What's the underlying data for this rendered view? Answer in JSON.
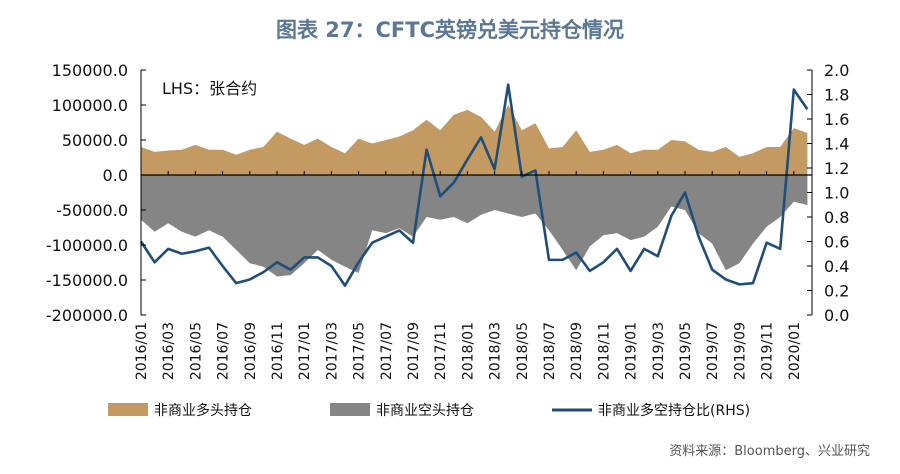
{
  "chart_data": {
    "type": "area+line",
    "title": "图表 27：CFTC英镑兑美元持仓情况",
    "annotation": "LHS：张合约",
    "source": "资料来源：Bloomberg、兴业研究",
    "y_left": {
      "range": [
        -200000,
        150000
      ],
      "ticks": [
        "150000.0",
        "100000.0",
        "50000.0",
        "0.0",
        "-50000.0",
        "-100000.0",
        "-150000.0",
        "-200000.0"
      ]
    },
    "y_right": {
      "range": [
        0,
        2.0
      ],
      "ticks": [
        "2.0",
        "1.8",
        "1.6",
        "1.4",
        "1.2",
        "1.0",
        "0.8",
        "0.6",
        "0.4",
        "0.2",
        "0.0"
      ]
    },
    "x_tick_labels": [
      "2016/01",
      "2016/03",
      "2016/05",
      "2016/07",
      "2016/09",
      "2016/11",
      "2017/01",
      "2017/03",
      "2017/05",
      "2017/07",
      "2017/09",
      "2017/11",
      "2018/01",
      "2018/03",
      "2018/05",
      "2018/07",
      "2018/09",
      "2018/11",
      "2019/01",
      "2019/03",
      "2019/05",
      "2019/07",
      "2019/09",
      "2019/11",
      "2020/01"
    ],
    "legend_placement": "bottom",
    "colors": {
      "long": "#c49a63",
      "short": "#858585",
      "ratio": "#1f4e79",
      "title": "#5a7894"
    },
    "series": [
      {
        "name": "非商业多头持仓",
        "axis": "left",
        "kind": "area",
        "values": [
          40000,
          33000,
          35000,
          36000,
          43000,
          36000,
          36000,
          29000,
          36000,
          40000,
          62000,
          52000,
          43000,
          52000,
          40000,
          31000,
          52000,
          45000,
          50000,
          55000,
          64000,
          79000,
          64000,
          86000,
          93000,
          83000,
          62000,
          100000,
          64000,
          74000,
          38000,
          40000,
          64000,
          33000,
          36000,
          43000,
          31000,
          36000,
          36000,
          50000,
          48000,
          36000,
          33000,
          40000,
          26000,
          31000,
          40000,
          40000,
          67000,
          60000
        ]
      },
      {
        "name": "非商业空头持仓",
        "axis": "left",
        "kind": "area",
        "values": [
          -64000,
          -81000,
          -69000,
          -81000,
          -88000,
          -79000,
          -88000,
          -107000,
          -126000,
          -131000,
          -145000,
          -143000,
          -126000,
          -107000,
          -121000,
          -131000,
          -140000,
          -79000,
          -83000,
          -76000,
          -88000,
          -60000,
          -64000,
          -60000,
          -69000,
          -57000,
          -50000,
          -55000,
          -60000,
          -55000,
          -79000,
          -107000,
          -136000,
          -102000,
          -86000,
          -83000,
          -93000,
          -88000,
          -74000,
          -45000,
          -50000,
          -83000,
          -98000,
          -136000,
          -126000,
          -98000,
          -74000,
          -60000,
          -38000,
          -43000
        ]
      },
      {
        "name": "非商业多空持仓比(RHS)",
        "axis": "right",
        "kind": "line",
        "values": [
          0.6,
          0.43,
          0.54,
          0.5,
          0.52,
          0.55,
          0.4,
          0.26,
          0.29,
          0.35,
          0.43,
          0.37,
          0.47,
          0.47,
          0.4,
          0.24,
          0.43,
          0.59,
          0.64,
          0.69,
          0.59,
          1.35,
          0.97,
          1.08,
          1.27,
          1.45,
          1.19,
          1.88,
          1.13,
          1.18,
          0.45,
          0.45,
          0.51,
          0.36,
          0.43,
          0.54,
          0.36,
          0.54,
          0.48,
          0.81,
          1.0,
          0.64,
          0.37,
          0.29,
          0.25,
          0.26,
          0.59,
          0.54,
          1.84,
          1.68
        ]
      }
    ]
  }
}
